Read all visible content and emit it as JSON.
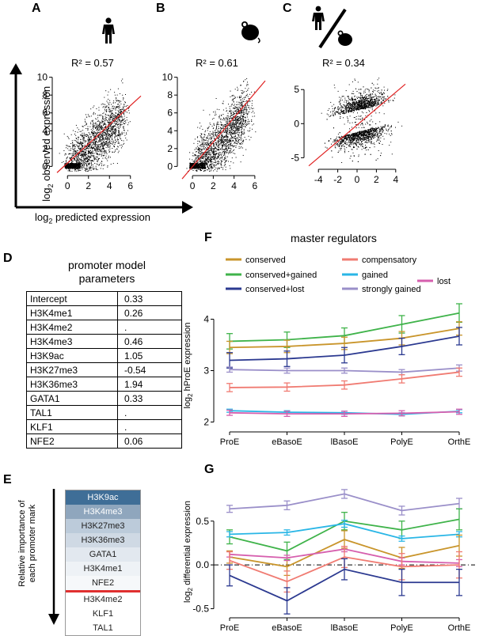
{
  "panels": {
    "A": {
      "label": "A",
      "icon": "human-icon",
      "r2": "R² = 0.57"
    },
    "B": {
      "label": "B",
      "icon": "mouse-icon",
      "r2": "R² = 0.61"
    },
    "C": {
      "label": "C",
      "icon": "human-vs-mouse-icon",
      "r2": "R² = 0.34"
    },
    "D": {
      "label": "D"
    },
    "E": {
      "label": "E"
    },
    "F": {
      "label": "F"
    },
    "G": {
      "label": "G"
    }
  },
  "scatter_axes": {
    "ylabel_main": "log",
    "ylabel_sub": "2",
    "ylabel_rest": " observed expression",
    "xlabel_main": "log",
    "xlabel_sub": "2",
    "xlabel_rest": " predicted expression"
  },
  "param_table": {
    "title_line1": "promoter model",
    "title_line2": "parameters",
    "rows": [
      {
        "name": "Intercept",
        "value": "0.33"
      },
      {
        "name": "H3K4me1",
        "value": "0.26"
      },
      {
        "name": "H3K4me2",
        "value": "."
      },
      {
        "name": "H3K4me3",
        "value": "0.46"
      },
      {
        "name": "H3K9ac",
        "value": "1.05"
      },
      {
        "name": "H3K27me3",
        "value": "-0.54"
      },
      {
        "name": "H3K36me3",
        "value": "1.94"
      },
      {
        "name": "GATA1",
        "value": "0.33"
      },
      {
        "name": "TAL1",
        "value": "."
      },
      {
        "name": "KLF1",
        "value": "."
      },
      {
        "name": "NFE2",
        "value": "0.06"
      }
    ]
  },
  "importance": {
    "axis_label_line1": "Relative importance of",
    "axis_label_line2": "each promoter mark",
    "items": [
      {
        "name": "H3K9ac",
        "color": "#3f6e97",
        "text_color": "#ffffff"
      },
      {
        "name": "H3K4me3",
        "color": "#8fa6bd",
        "text_color": "#ffffff"
      },
      {
        "name": "H3K27me3",
        "color": "#bccbda",
        "text_color": "#222222"
      },
      {
        "name": "H3K36me3",
        "color": "#cfd9e4",
        "text_color": "#222222"
      },
      {
        "name": "GATA1",
        "color": "#e2e8ef",
        "text_color": "#222222"
      },
      {
        "name": "H3K4me1",
        "color": "#eef2f6",
        "text_color": "#222222"
      },
      {
        "name": "NFE2",
        "color": "#f6f8fa",
        "text_color": "#222222"
      },
      {
        "name": "H3K4me2",
        "color": "#ffffff",
        "text_color": "#222222"
      },
      {
        "name": "KLF1",
        "color": "#ffffff",
        "text_color": "#222222"
      },
      {
        "name": "TAL1",
        "color": "#ffffff",
        "text_color": "#222222"
      }
    ],
    "cutoff_color": "#e03030"
  },
  "legend": {
    "title": "master regulators",
    "items": [
      {
        "name": "conserved",
        "color": "#c9952b"
      },
      {
        "name": "compensatory",
        "color": "#f07b72"
      },
      {
        "name": "conserved+gained",
        "color": "#3fb34a"
      },
      {
        "name": "gained",
        "color": "#29b6e6"
      },
      {
        "name": "lost",
        "color": "#d65fae"
      },
      {
        "name": "conserved+lost",
        "color": "#2b3990"
      },
      {
        "name": "strongly gained",
        "color": "#9a8fc9"
      }
    ]
  },
  "chart_data": [
    {
      "panel": "A",
      "type": "scatter",
      "xlabel": "log2 predicted expression",
      "ylabel": "log2 observed expression",
      "xlim": [
        -1,
        7
      ],
      "ylim": [
        -0.5,
        10.5
      ],
      "xticks": [
        "0",
        "2",
        "4",
        "6"
      ],
      "yticks": [
        "0",
        "2",
        "4",
        "6",
        "8",
        "10"
      ],
      "fit_line": {
        "color": "#e02020",
        "x": [
          -1,
          7
        ],
        "y": [
          -0.7,
          7.9
        ]
      },
      "r2": 0.57,
      "grid": false
    },
    {
      "panel": "B",
      "type": "scatter",
      "xlim": [
        -1,
        7
      ],
      "ylim": [
        -0.5,
        10.5
      ],
      "xticks": [
        "0",
        "2",
        "4",
        "6"
      ],
      "yticks": [
        "0",
        "2",
        "4",
        "6",
        "8",
        "10"
      ],
      "fit_line": {
        "color": "#e02020",
        "x": [
          -1,
          7
        ],
        "y": [
          -1.4,
          9.6
        ]
      },
      "r2": 0.61,
      "grid": false
    },
    {
      "panel": "C",
      "type": "scatter",
      "xlim": [
        -5,
        5
      ],
      "ylim": [
        -6,
        7
      ],
      "xticks": [
        "-4",
        "-2",
        "0",
        "2",
        "4"
      ],
      "yticks": [
        "-5",
        "0",
        "5"
      ],
      "fit_line": {
        "color": "#e02020",
        "x": [
          -5,
          5
        ],
        "y": [
          -6.2,
          5.8
        ]
      },
      "r2": 0.34,
      "grid": false
    },
    {
      "panel": "F",
      "type": "line",
      "ylabel": "log2 hProE expression",
      "categories": [
        "ProE",
        "eBasoE",
        "lBasoE",
        "PolyE",
        "OrthE"
      ],
      "ylim": [
        1.9,
        4.3
      ],
      "yticks": [
        "2",
        "3",
        "4"
      ],
      "series": [
        {
          "name": "conserved+gained",
          "color": "#3fb34a",
          "values": [
            3.57,
            3.6,
            3.68,
            3.9,
            4.12
          ],
          "err": [
            0.15,
            0.15,
            0.15,
            0.17,
            0.18
          ]
        },
        {
          "name": "conserved",
          "color": "#c9952b",
          "values": [
            3.45,
            3.47,
            3.53,
            3.63,
            3.82
          ],
          "err": [
            0.12,
            0.12,
            0.12,
            0.13,
            0.13
          ]
        },
        {
          "name": "conserved+lost",
          "color": "#2b3990",
          "values": [
            3.2,
            3.23,
            3.3,
            3.47,
            3.67
          ],
          "err": [
            0.15,
            0.15,
            0.15,
            0.16,
            0.17
          ]
        },
        {
          "name": "strongly gained",
          "color": "#9a8fc9",
          "values": [
            3.02,
            3.0,
            3.0,
            2.97,
            3.05
          ],
          "err": [
            0.05,
            0.05,
            0.05,
            0.05,
            0.06
          ]
        },
        {
          "name": "compensatory",
          "color": "#f07b72",
          "values": [
            2.67,
            2.68,
            2.72,
            2.84,
            2.97
          ],
          "err": [
            0.08,
            0.08,
            0.08,
            0.08,
            0.08
          ]
        },
        {
          "name": "gained",
          "color": "#29b6e6",
          "values": [
            2.22,
            2.19,
            2.18,
            2.15,
            2.21
          ],
          "err": [
            0.03,
            0.03,
            0.03,
            0.03,
            0.03
          ]
        },
        {
          "name": "lost",
          "color": "#d65fae",
          "values": [
            2.18,
            2.16,
            2.16,
            2.17,
            2.2
          ],
          "err": [
            0.05,
            0.05,
            0.05,
            0.05,
            0.05
          ]
        }
      ]
    },
    {
      "panel": "G",
      "type": "line",
      "ylabel": "log2 differential expression",
      "categories": [
        "ProE",
        "eBasoE",
        "lBasoE",
        "PolyE",
        "OrthE"
      ],
      "ylim": [
        -0.55,
        0.85
      ],
      "yticks": [
        "-0.5",
        "0.0",
        "0.5"
      ],
      "zero_line": true,
      "series": [
        {
          "name": "strongly gained",
          "color": "#9a8fc9",
          "values": [
            0.64,
            0.68,
            0.81,
            0.62,
            0.7
          ],
          "err": [
            0.04,
            0.05,
            0.05,
            0.05,
            0.06
          ]
        },
        {
          "name": "conserved+gained",
          "color": "#3fb34a",
          "values": [
            0.32,
            0.16,
            0.5,
            0.4,
            0.52
          ],
          "err": [
            0.08,
            0.1,
            0.1,
            0.1,
            0.12
          ]
        },
        {
          "name": "gained",
          "color": "#29b6e6",
          "values": [
            0.35,
            0.37,
            0.47,
            0.3,
            0.35
          ],
          "err": [
            0.03,
            0.03,
            0.04,
            0.03,
            0.03
          ]
        },
        {
          "name": "conserved",
          "color": "#c9952b",
          "values": [
            0.09,
            -0.02,
            0.29,
            0.08,
            0.22
          ],
          "err": [
            0.07,
            0.1,
            0.1,
            0.12,
            0.12
          ]
        },
        {
          "name": "lost",
          "color": "#d65fae",
          "values": [
            0.12,
            0.08,
            0.18,
            0.04,
            0.02
          ],
          "err": [
            0.03,
            0.03,
            0.03,
            0.04,
            0.04
          ]
        },
        {
          "name": "compensatory",
          "color": "#f07b72",
          "values": [
            0.05,
            -0.19,
            0.09,
            -0.02,
            0.0
          ],
          "err": [
            0.1,
            0.12,
            0.12,
            0.15,
            0.15
          ]
        },
        {
          "name": "conserved+lost",
          "color": "#2b3990",
          "values": [
            -0.12,
            -0.41,
            -0.05,
            -0.2,
            -0.2
          ],
          "err": [
            0.12,
            0.15,
            0.12,
            0.15,
            0.15
          ]
        }
      ]
    }
  ]
}
